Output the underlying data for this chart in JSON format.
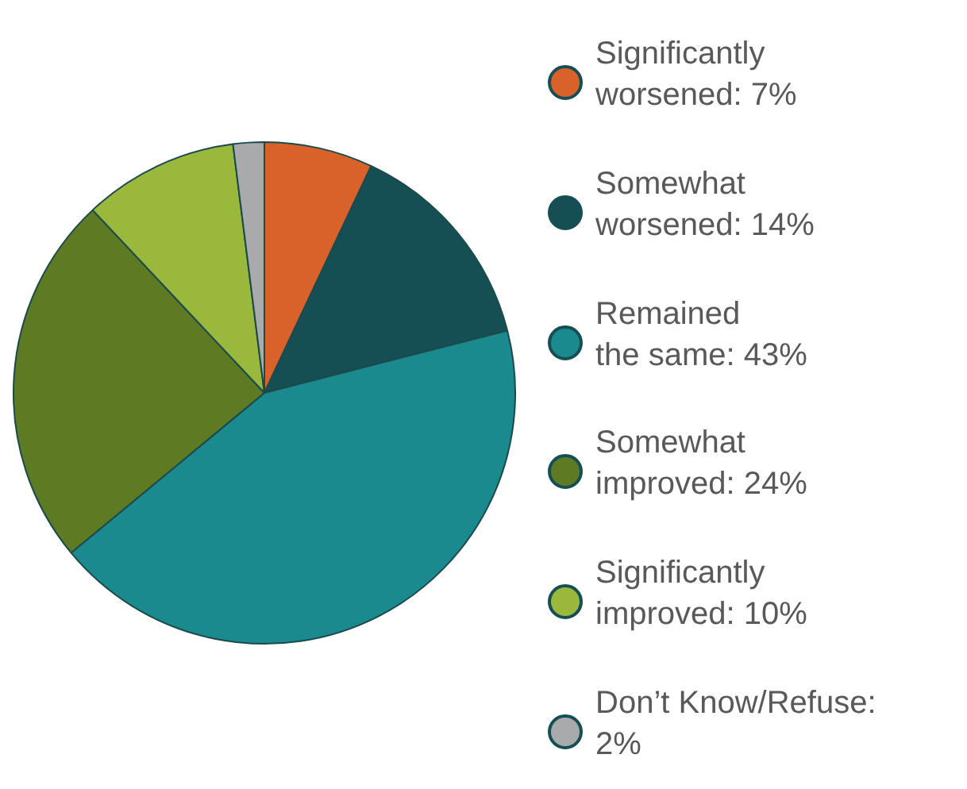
{
  "chart_data": {
    "type": "pie",
    "categories": [
      "Significantly\nworsened: 7%",
      "Somewhat\nworsened: 14%",
      "Remained\nthe same: 43%",
      "Somewhat\nimproved: 24%",
      "Significantly\nimproved: 10%",
      "Don’t Know/Refuse:\n2%"
    ],
    "values": [
      7,
      14,
      43,
      24,
      10,
      2
    ],
    "colors": [
      "#d9622b",
      "#154f53",
      "#1a8a8f",
      "#5e7a23",
      "#9ab83c",
      "#a9aaab"
    ],
    "legend": "right"
  }
}
